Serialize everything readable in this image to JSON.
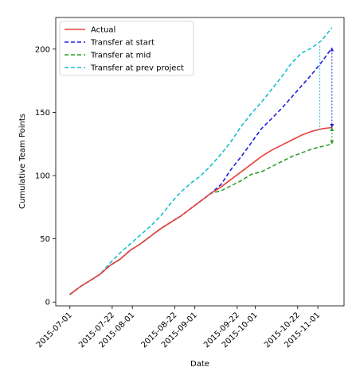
{
  "chart_data": {
    "type": "line",
    "title": "",
    "xlabel": "Date",
    "ylabel": "Cumulative Team Points",
    "xlim": [
      "2015-06-24",
      "2015-11-14"
    ],
    "ylim": [
      -3,
      225
    ],
    "grid": false,
    "legend_position": "top-left",
    "x_ticks": [
      "2015-07-01",
      "2015-07-22",
      "2015-08-01",
      "2015-08-22",
      "2015-09-01",
      "2015-09-22",
      "2015-10-01",
      "2015-10-22",
      "2015-11-01"
    ],
    "y_ticks": [
      0,
      50,
      100,
      150,
      200
    ],
    "x": [
      "2015-07-01",
      "2015-07-06",
      "2015-07-11",
      "2015-07-16",
      "2015-07-21",
      "2015-07-26",
      "2015-07-31",
      "2015-08-05",
      "2015-08-10",
      "2015-08-15",
      "2015-08-20",
      "2015-08-25",
      "2015-08-30",
      "2015-09-04",
      "2015-09-09",
      "2015-09-14",
      "2015-09-19",
      "2015-09-24",
      "2015-09-29",
      "2015-10-04",
      "2015-10-09",
      "2015-10-14",
      "2015-10-19",
      "2015-10-24",
      "2015-10-29",
      "2015-11-03",
      "2015-11-08"
    ],
    "series": [
      {
        "name": "Actual",
        "color": "#e8413c",
        "dash": "solid",
        "values": [
          6,
          12,
          17,
          22,
          29,
          34,
          41,
          46,
          52,
          58,
          63,
          68,
          74,
          80,
          86,
          91,
          97,
          103,
          109,
          115,
          120,
          124,
          128,
          132,
          135,
          137,
          138
        ]
      },
      {
        "name": "Transfer at start",
        "color": "#2222dd",
        "dash": "dashed",
        "values": [
          6,
          12,
          17,
          22,
          29,
          34,
          41,
          46,
          52,
          58,
          63,
          68,
          74,
          80,
          86,
          93,
          105,
          115,
          126,
          137,
          145,
          153,
          162,
          171,
          180,
          190,
          201
        ]
      },
      {
        "name": "Transfer at mid",
        "color": "#2ca02c",
        "dash": "dashed",
        "values": [
          6,
          12,
          17,
          22,
          29,
          34,
          41,
          46,
          52,
          58,
          63,
          68,
          74,
          80,
          86,
          88,
          92,
          96,
          101,
          103,
          107,
          111,
          115,
          118,
          121,
          123,
          125
        ]
      },
      {
        "name": "Transfer at prev project",
        "color": "#17becf",
        "dash": "dashed",
        "values": [
          6,
          12,
          17,
          22,
          31,
          39,
          46,
          53,
          60,
          68,
          78,
          87,
          94,
          100,
          108,
          117,
          127,
          139,
          149,
          158,
          168,
          178,
          189,
          197,
          201,
          207,
          217
        ]
      }
    ],
    "annotations": [
      {
        "type": "arrow",
        "x": "2015-11-08",
        "from": 138,
        "to": 201,
        "color": "#2222dd",
        "style": "dotted",
        "heads": "both"
      },
      {
        "type": "arrow",
        "x": "2015-11-08",
        "from": 125,
        "to": 138,
        "color": "#2ca02c",
        "style": "dotted",
        "heads": "both"
      },
      {
        "type": "line",
        "x": "2015-11-02",
        "from": 136,
        "to": 204,
        "color": "#17becf",
        "style": "dotted"
      }
    ]
  }
}
